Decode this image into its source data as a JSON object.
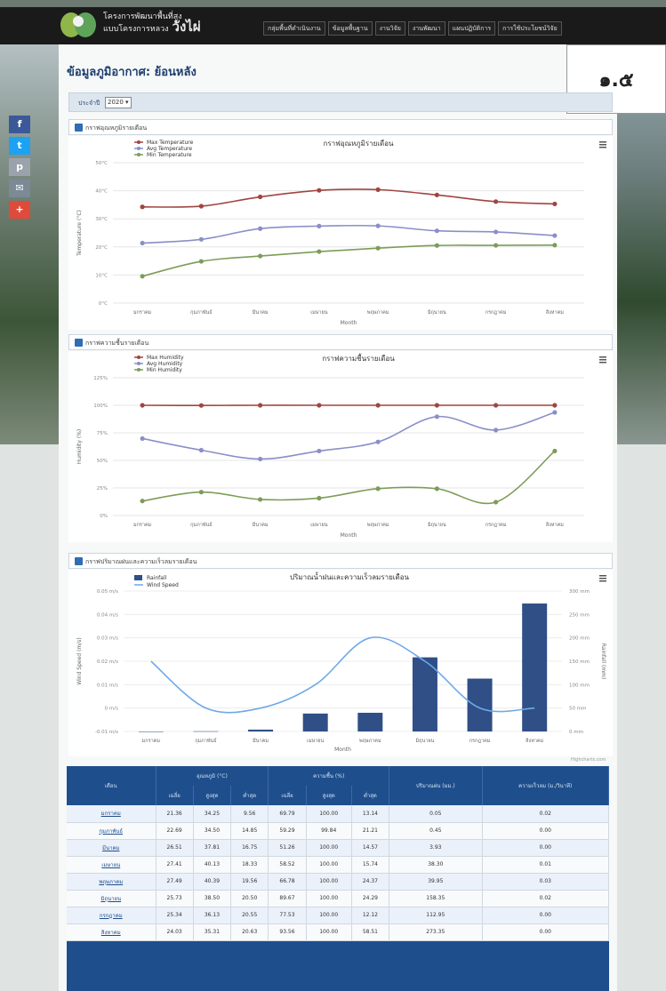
{
  "header": {
    "brand_line1": "โครงการพัฒนาพื้นที่สูง",
    "brand_line2": "แบบโครงการหลวง",
    "brand_big": "วังไผ่",
    "nav": [
      "กลุ่มพื้นที่ดำเนินงาน",
      "ข้อมูลพื้นฐาน",
      "งานวิจัย",
      "งานพัฒนา",
      "แผนปฏิบัติการ",
      "การใช้ประโยชน์วิจัย"
    ]
  },
  "badge": "๑.๕",
  "page_title": "ข้อมูลภูมิอากาศ: ย้อนหลัง",
  "year_label": "ประจำปี",
  "year_value": "2020",
  "social": [
    "f",
    "t",
    "p",
    "✉",
    "+"
  ],
  "colors": {
    "max": "#a0453f",
    "avg": "#8a8fc8",
    "min": "#7c9c58",
    "rain": "#2f4f86",
    "wind": "#6fa9e8"
  },
  "months": [
    "มกราคม",
    "กุมภาพันธ์",
    "มีนาคม",
    "เมษายน",
    "พฤษภาคม",
    "มิถุนายน",
    "กรกฎาคม",
    "สิงหาคม"
  ],
  "panels": {
    "temp": "กราฟอุณหภูมิรายเดือน",
    "hum": "กราฟความชื้นรายเดือน",
    "rain": "กราฟปริมาณฝนและความเร็วลมรายเดือน"
  },
  "chart_data": [
    {
      "type": "line",
      "title": "กราฟอุณหภูมิรายเดือน",
      "xlabel": "Month",
      "ylabel": "Temperature (°C)",
      "categories": [
        "มกราคม",
        "กุมภาพันธ์",
        "มีนาคม",
        "เมษายน",
        "พฤษภาคม",
        "มิถุนายน",
        "กรกฎาคม",
        "สิงหาคม"
      ],
      "ylim": [
        0,
        50
      ],
      "yticks": [
        "0°C",
        "10°C",
        "20°C",
        "30°C",
        "40°C",
        "50°C"
      ],
      "series": [
        {
          "name": "Max Temperature",
          "values": [
            34.25,
            34.5,
            37.81,
            40.13,
            40.39,
            38.5,
            36.13,
            35.31
          ]
        },
        {
          "name": "Avg Temperature",
          "values": [
            21.36,
            22.69,
            26.51,
            27.41,
            27.49,
            25.73,
            25.34,
            24.03
          ]
        },
        {
          "name": "Min Temperature",
          "values": [
            9.56,
            14.85,
            16.75,
            18.33,
            19.56,
            20.5,
            20.55,
            20.63
          ]
        }
      ],
      "legend": "top-left"
    },
    {
      "type": "line",
      "title": "กราฟความชื้นรายเดือน",
      "xlabel": "Month",
      "ylabel": "Humidity (%)",
      "categories": [
        "มกราคม",
        "กุมภาพันธ์",
        "มีนาคม",
        "เมษายน",
        "พฤษภาคม",
        "มิถุนายน",
        "กรกฎาคม",
        "สิงหาคม"
      ],
      "ylim": [
        0,
        125
      ],
      "yticks": [
        "0%",
        "25%",
        "50%",
        "75%",
        "100%",
        "125%"
      ],
      "series": [
        {
          "name": "Max Humidity",
          "values": [
            100,
            99.84,
            100,
            100,
            100,
            100,
            100,
            100
          ]
        },
        {
          "name": "Avg Humidity",
          "values": [
            69.79,
            59.29,
            51.26,
            58.52,
            66.78,
            89.67,
            77.53,
            93.56
          ]
        },
        {
          "name": "Min Humidity",
          "values": [
            13.14,
            21.21,
            14.57,
            15.74,
            24.37,
            24.29,
            12.12,
            58.51
          ]
        }
      ],
      "legend": "top-left"
    },
    {
      "type": "bar",
      "title": "ปริมาณน้ำฝนและความเร็วลมรายเดือน",
      "xlabel": "Month",
      "ylabel": "Rainfall (mm)",
      "y2label": "Wind Speed (m/s)",
      "categories": [
        "มกราคม",
        "กุมภาพันธ์",
        "มีนาคม",
        "เมษายน",
        "พฤษภาคม",
        "มิถุนายน",
        "กรกฎาคม",
        "สิงหาคม"
      ],
      "ylim": [
        0,
        300
      ],
      "y2lim": [
        -0.01,
        0.05
      ],
      "yticks_right": [
        "0 mm",
        "50 mm",
        "100 mm",
        "150 mm",
        "200 mm",
        "250 mm",
        "300 mm"
      ],
      "yticks_left": [
        "-0.01 m/s",
        "0 m/s",
        "0.01 m/s",
        "0.02 m/s",
        "0.03 m/s",
        "0.04 m/s",
        "0.05 m/s"
      ],
      "series": [
        {
          "name": "Rainfall",
          "values": [
            0.05,
            0.45,
            3.93,
            38.3,
            39.95,
            158.35,
            112.95,
            273.35
          ]
        },
        {
          "name": "Wind Speed",
          "values": [
            0.02,
            0.0,
            0.0,
            0.01,
            0.03,
            0.02,
            0.0,
            0.0
          ]
        }
      ],
      "legend": "top-left"
    }
  ],
  "table": {
    "h_month": "เดือน",
    "h_temp": "อุณหภูมิ (°C)",
    "h_hum": "ความชื้น (%)",
    "h_rain": "ปริมาณฝน (มม.)",
    "h_wind": "ความเร็วลม (ม./วินาที)",
    "h_avg": "เฉลี่ย",
    "h_max": "สูงสุด",
    "h_min": "ต่ำสุด",
    "credit": "Highcharts.com",
    "rows": [
      [
        "มกราคม",
        "21.36",
        "34.25",
        "9.56",
        "69.79",
        "100.00",
        "13.14",
        "0.05",
        "0.02"
      ],
      [
        "กุมภาพันธ์",
        "22.69",
        "34.50",
        "14.85",
        "59.29",
        "99.84",
        "21.21",
        "0.45",
        "0.00"
      ],
      [
        "มีนาคม",
        "26.51",
        "37.81",
        "16.75",
        "51.26",
        "100.00",
        "14.57",
        "3.93",
        "0.00"
      ],
      [
        "เมษายน",
        "27.41",
        "40.13",
        "18.33",
        "58.52",
        "100.00",
        "15.74",
        "38.30",
        "0.01"
      ],
      [
        "พฤษภาคม",
        "27.49",
        "40.39",
        "19.56",
        "66.78",
        "100.00",
        "24.37",
        "39.95",
        "0.03"
      ],
      [
        "มิถุนายน",
        "25.73",
        "38.50",
        "20.50",
        "89.67",
        "100.00",
        "24.29",
        "158.35",
        "0.02"
      ],
      [
        "กรกฎาคม",
        "25.34",
        "36.13",
        "20.55",
        "77.53",
        "100.00",
        "12.12",
        "112.95",
        "0.00"
      ],
      [
        "สิงหาคม",
        "24.03",
        "35.31",
        "20.63",
        "93.56",
        "100.00",
        "58.51",
        "273.35",
        "0.00"
      ]
    ]
  }
}
